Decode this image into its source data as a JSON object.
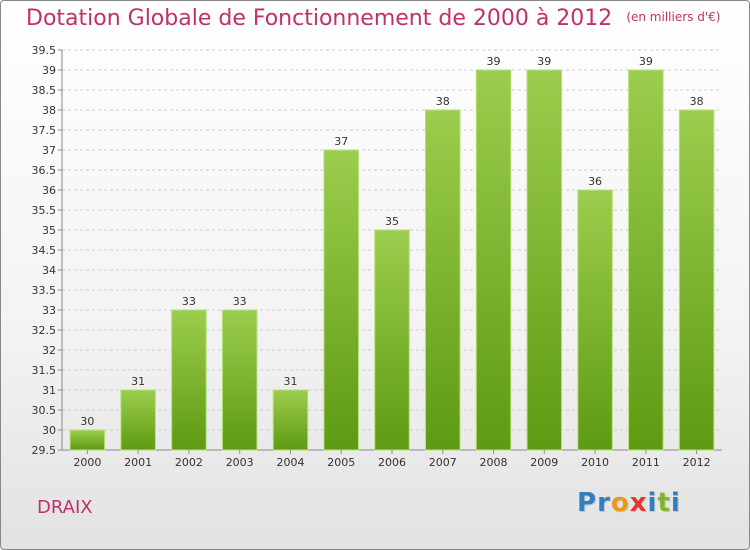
{
  "header": {
    "title": "Dotation Globale de Fonctionnement de 2000 à 2012",
    "unit": "(en milliers d'€)"
  },
  "footer": {
    "place": "DRAIX",
    "brand": "Proxiti",
    "brand_letters": [
      {
        "ch": "P",
        "color": "#2f7fc1"
      },
      {
        "ch": "r",
        "color": "#2f7fc1"
      },
      {
        "ch": "o",
        "color": "#e99a1c"
      },
      {
        "ch": "x",
        "color": "#e3362c"
      },
      {
        "ch": "i",
        "color": "#2f7fc1"
      },
      {
        "ch": "t",
        "color": "#7cb62f"
      },
      {
        "ch": "i",
        "color": "#2f7fc1"
      }
    ]
  },
  "colors": {
    "bar_top": "#9ccd4e",
    "bar_bottom": "#5e9a12",
    "accent": "#c0306b",
    "grid": "#cccccc"
  },
  "chart_data": {
    "type": "bar",
    "categories": [
      "2000",
      "2001",
      "2002",
      "2003",
      "2004",
      "2005",
      "2006",
      "2007",
      "2008",
      "2009",
      "2010",
      "2011",
      "2012"
    ],
    "values": [
      30,
      31,
      33,
      33,
      31,
      37,
      35,
      38,
      39,
      39,
      36,
      39,
      38
    ],
    "ylim": [
      29.5,
      39.5
    ],
    "ytick_step": 0.5,
    "yticks": [
      "29.5",
      "30",
      "30.5",
      "31",
      "31.5",
      "32",
      "32.5",
      "33",
      "33.5",
      "34",
      "34.5",
      "35",
      "35.5",
      "36",
      "36.5",
      "37",
      "37.5",
      "38",
      "38.5",
      "39",
      "39.5"
    ],
    "grid": true
  }
}
